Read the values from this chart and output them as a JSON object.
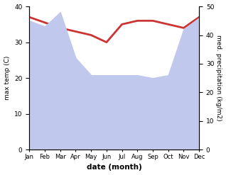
{
  "months": [
    "Jan",
    "Feb",
    "Mar",
    "Apr",
    "May",
    "Jun",
    "Jul",
    "Aug",
    "Sep",
    "Oct",
    "Nov",
    "Dec"
  ],
  "temp_max": [
    37,
    35.5,
    34,
    33,
    32,
    30,
    35,
    36,
    36,
    35,
    34,
    37
  ],
  "precipitation": [
    45,
    43,
    48,
    32,
    26,
    26,
    26,
    26,
    25,
    26,
    42,
    46
  ],
  "temp_color": "#cc3333",
  "precip_fill_color": "#c0c8ee",
  "temp_ylim": [
    0,
    40
  ],
  "precip_ylim": [
    0,
    50
  ],
  "temp_yticks": [
    0,
    10,
    20,
    30,
    40
  ],
  "precip_yticks": [
    0,
    10,
    20,
    30,
    40,
    50
  ],
  "xlabel": "date (month)",
  "ylabel_left": "max temp (C)",
  "ylabel_right": "med. precipitation (kg/m2)",
  "temp_linewidth": 2.0,
  "figsize": [
    3.18,
    2.47
  ],
  "dpi": 100
}
